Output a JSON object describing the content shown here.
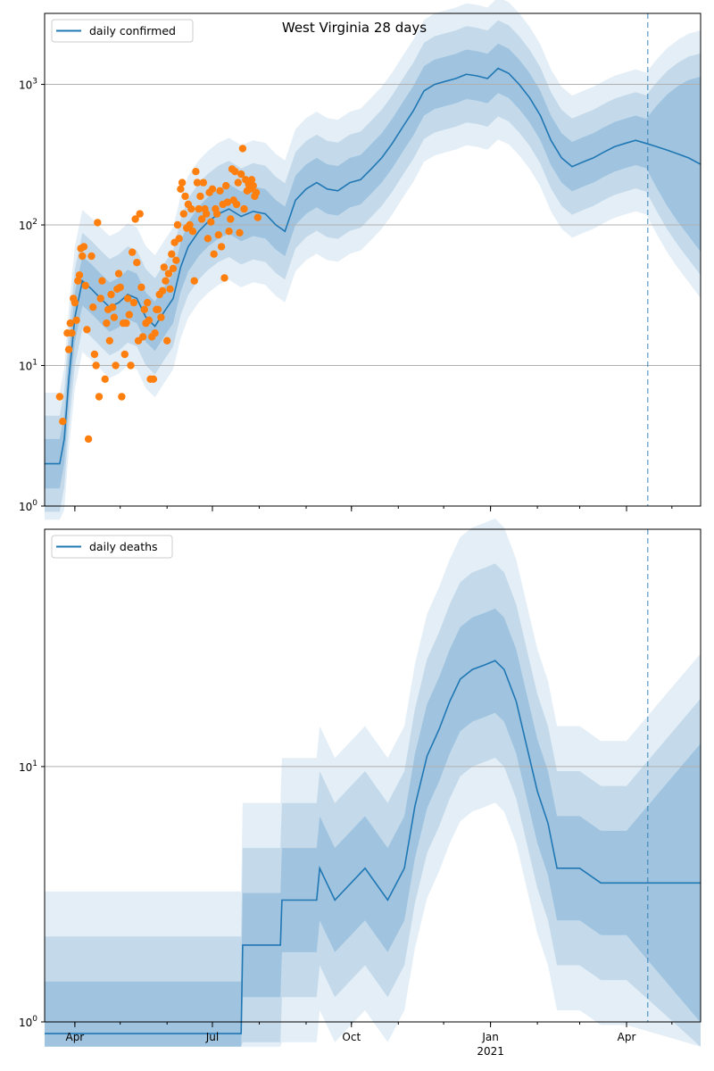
{
  "chart_data": [
    {
      "type": "line",
      "title": "West Virginia 28 days",
      "legend": [
        "daily confirmed"
      ],
      "legend_placement": "upper-left",
      "yscale": "log",
      "ylim": [
        1,
        3200
      ],
      "ytick_labels": [
        "10^0",
        "10^1",
        "10^2",
        "10^3"
      ],
      "ytick_values": [
        1,
        10,
        100,
        1000
      ],
      "xlim": [
        "2020-03-12",
        "2021-05-20"
      ],
      "xticks": [
        {
          "label": "Apr",
          "date": "2020-04-01"
        },
        {
          "label": "Jul",
          "date": "2020-07-01"
        },
        {
          "label": "Oct",
          "date": "2020-10-01"
        },
        {
          "label": "Jan",
          "date": "2021-01-01"
        },
        {
          "label": "Apr",
          "date": "2021-04-01"
        }
      ],
      "year_label": "2021",
      "grid": "horizontal",
      "forecast_start": "2021-04-15",
      "series": [
        {
          "name": "daily confirmed",
          "kind": "line",
          "points": [
            [
              "2020-03-12",
              2
            ],
            [
              "2020-03-17",
              2
            ],
            [
              "2020-03-19",
              2
            ],
            [
              "2020-03-22",
              2
            ],
            [
              "2020-03-25",
              3
            ],
            [
              "2020-03-28",
              8
            ],
            [
              "2020-04-01",
              22
            ],
            [
              "2020-04-06",
              40
            ],
            [
              "2020-04-12",
              35
            ],
            [
              "2020-04-18",
              30
            ],
            [
              "2020-04-24",
              26
            ],
            [
              "2020-04-30",
              28
            ],
            [
              "2020-05-06",
              32
            ],
            [
              "2020-05-12",
              30
            ],
            [
              "2020-05-18",
              22
            ],
            [
              "2020-05-24",
              19
            ],
            [
              "2020-05-30",
              24
            ],
            [
              "2020-06-05",
              30
            ],
            [
              "2020-06-10",
              50
            ],
            [
              "2020-06-15",
              70
            ],
            [
              "2020-06-22",
              90
            ],
            [
              "2020-06-28",
              105
            ],
            [
              "2020-07-05",
              120
            ],
            [
              "2020-07-12",
              130
            ],
            [
              "2020-07-20",
              115
            ],
            [
              "2020-07-28",
              125
            ],
            [
              "2020-08-05",
              120
            ],
            [
              "2020-08-12",
              100
            ],
            [
              "2020-08-18",
              90
            ],
            [
              "2020-08-25",
              150
            ],
            [
              "2020-09-01",
              180
            ],
            [
              "2020-09-08",
              200
            ],
            [
              "2020-09-15",
              180
            ],
            [
              "2020-09-22",
              175
            ],
            [
              "2020-09-30",
              200
            ],
            [
              "2020-10-07",
              210
            ],
            [
              "2020-10-14",
              250
            ],
            [
              "2020-10-21",
              300
            ],
            [
              "2020-10-28",
              380
            ],
            [
              "2020-11-04",
              500
            ],
            [
              "2020-11-11",
              650
            ],
            [
              "2020-11-18",
              900
            ],
            [
              "2020-11-25",
              1000
            ],
            [
              "2020-12-02",
              1050
            ],
            [
              "2020-12-09",
              1100
            ],
            [
              "2020-12-16",
              1180
            ],
            [
              "2020-12-23",
              1150
            ],
            [
              "2020-12-30",
              1100
            ],
            [
              "2021-01-06",
              1300
            ],
            [
              "2021-01-13",
              1200
            ],
            [
              "2021-01-20",
              1000
            ],
            [
              "2021-01-27",
              800
            ],
            [
              "2021-02-03",
              600
            ],
            [
              "2021-02-10",
              400
            ],
            [
              "2021-02-17",
              300
            ],
            [
              "2021-02-24",
              260
            ],
            [
              "2021-03-03",
              280
            ],
            [
              "2021-03-10",
              300
            ],
            [
              "2021-03-17",
              330
            ],
            [
              "2021-03-24",
              360
            ],
            [
              "2021-03-31",
              380
            ],
            [
              "2021-04-07",
              400
            ],
            [
              "2021-04-14",
              380
            ],
            [
              "2021-04-21",
              360
            ],
            [
              "2021-04-28",
              340
            ],
            [
              "2021-05-05",
              320
            ],
            [
              "2021-05-12",
              300
            ],
            [
              "2021-05-20",
              270
            ]
          ]
        },
        {
          "name": "",
          "kind": "scatter",
          "points": [
            [
              "2020-03-22",
              6
            ],
            [
              "2020-03-24",
              4
            ],
            [
              "2020-03-27",
              17
            ],
            [
              "2020-03-28",
              13
            ],
            [
              "2020-03-29",
              20
            ],
            [
              "2020-03-30",
              17
            ],
            [
              "2020-03-31",
              30
            ],
            [
              "2020-04-01",
              28
            ],
            [
              "2020-04-02",
              21
            ],
            [
              "2020-04-03",
              40
            ],
            [
              "2020-04-04",
              44
            ],
            [
              "2020-04-05",
              68
            ],
            [
              "2020-04-06",
              60
            ],
            [
              "2020-04-07",
              70
            ],
            [
              "2020-04-08",
              37
            ],
            [
              "2020-04-09",
              18
            ],
            [
              "2020-04-10",
              3
            ],
            [
              "2020-04-12",
              60
            ],
            [
              "2020-04-13",
              26
            ],
            [
              "2020-04-14",
              12
            ],
            [
              "2020-04-15",
              10
            ],
            [
              "2020-04-16",
              104
            ],
            [
              "2020-04-17",
              6
            ],
            [
              "2020-04-18",
              30
            ],
            [
              "2020-04-19",
              40
            ],
            [
              "2020-04-21",
              8
            ],
            [
              "2020-04-22",
              20
            ],
            [
              "2020-04-23",
              25
            ],
            [
              "2020-04-24",
              15
            ],
            [
              "2020-04-25",
              32
            ],
            [
              "2020-04-26",
              26
            ],
            [
              "2020-04-27",
              22
            ],
            [
              "2020-04-28",
              10
            ],
            [
              "2020-04-29",
              35
            ],
            [
              "2020-04-30",
              45
            ],
            [
              "2020-05-01",
              36
            ],
            [
              "2020-05-02",
              6
            ],
            [
              "2020-05-03",
              20
            ],
            [
              "2020-05-04",
              12
            ],
            [
              "2020-05-05",
              20
            ],
            [
              "2020-05-06",
              30
            ],
            [
              "2020-05-07",
              23
            ],
            [
              "2020-05-08",
              10
            ],
            [
              "2020-05-09",
              64
            ],
            [
              "2020-05-10",
              28
            ],
            [
              "2020-05-11",
              110
            ],
            [
              "2020-05-12",
              54
            ],
            [
              "2020-05-13",
              15
            ],
            [
              "2020-05-14",
              120
            ],
            [
              "2020-05-15",
              36
            ],
            [
              "2020-05-16",
              16
            ],
            [
              "2020-05-17",
              25
            ],
            [
              "2020-05-18",
              20
            ],
            [
              "2020-05-19",
              28
            ],
            [
              "2020-05-20",
              21
            ],
            [
              "2020-05-21",
              8
            ],
            [
              "2020-05-22",
              16
            ],
            [
              "2020-05-23",
              8
            ],
            [
              "2020-05-24",
              17
            ],
            [
              "2020-05-25",
              25
            ],
            [
              "2020-05-26",
              25
            ],
            [
              "2020-05-27",
              32
            ],
            [
              "2020-05-28",
              22
            ],
            [
              "2020-05-29",
              34
            ],
            [
              "2020-05-30",
              50
            ],
            [
              "2020-05-31",
              40
            ],
            [
              "2020-06-01",
              15
            ],
            [
              "2020-06-02",
              45
            ],
            [
              "2020-06-03",
              35
            ],
            [
              "2020-06-04",
              62
            ],
            [
              "2020-06-05",
              49
            ],
            [
              "2020-06-06",
              75
            ],
            [
              "2020-06-07",
              56
            ],
            [
              "2020-06-08",
              100
            ],
            [
              "2020-06-09",
              80
            ],
            [
              "2020-06-10",
              180
            ],
            [
              "2020-06-11",
              200
            ],
            [
              "2020-06-12",
              120
            ],
            [
              "2020-06-13",
              160
            ],
            [
              "2020-06-14",
              95
            ],
            [
              "2020-06-15",
              140
            ],
            [
              "2020-06-16",
              100
            ],
            [
              "2020-06-17",
              130
            ],
            [
              "2020-06-18",
              90
            ],
            [
              "2020-06-19",
              40
            ],
            [
              "2020-06-20",
              240
            ],
            [
              "2020-06-21",
              200
            ],
            [
              "2020-06-22",
              130
            ],
            [
              "2020-06-23",
              160
            ],
            [
              "2020-06-24",
              110
            ],
            [
              "2020-06-25",
              200
            ],
            [
              "2020-06-26",
              130
            ],
            [
              "2020-06-27",
              120
            ],
            [
              "2020-06-28",
              80
            ],
            [
              "2020-06-29",
              170
            ],
            [
              "2020-06-30",
              105
            ],
            [
              "2020-07-01",
              180
            ],
            [
              "2020-07-02",
              62
            ],
            [
              "2020-07-03",
              130
            ],
            [
              "2020-07-04",
              120
            ],
            [
              "2020-07-05",
              85
            ],
            [
              "2020-07-06",
              175
            ],
            [
              "2020-07-07",
              70
            ],
            [
              "2020-07-08",
              140
            ],
            [
              "2020-07-09",
              42
            ],
            [
              "2020-07-10",
              190
            ],
            [
              "2020-07-11",
              145
            ],
            [
              "2020-07-12",
              90
            ],
            [
              "2020-07-13",
              110
            ],
            [
              "2020-07-14",
              250
            ],
            [
              "2020-07-15",
              150
            ],
            [
              "2020-07-16",
              240
            ],
            [
              "2020-07-17",
              140
            ],
            [
              "2020-07-18",
              200
            ],
            [
              "2020-07-19",
              88
            ],
            [
              "2020-07-20",
              230
            ],
            [
              "2020-07-21",
              350
            ],
            [
              "2020-07-22",
              130
            ],
            [
              "2020-07-23",
              210
            ],
            [
              "2020-07-24",
              175
            ],
            [
              "2020-07-25",
              195
            ],
            [
              "2020-07-26",
              180
            ],
            [
              "2020-07-27",
              210
            ],
            [
              "2020-07-28",
              190
            ],
            [
              "2020-07-29",
              160
            ],
            [
              "2020-07-30",
              170
            ],
            [
              "2020-07-31",
              113
            ]
          ]
        }
      ]
    },
    {
      "type": "line",
      "title": "",
      "legend": [
        "daily deaths"
      ],
      "legend_placement": "upper-left",
      "yscale": "log",
      "ylim": [
        1,
        85
      ],
      "ytick_labels": [
        "10^0",
        "10^1"
      ],
      "ytick_values": [
        1,
        10
      ],
      "xlim": [
        "2020-03-12",
        "2021-05-20"
      ],
      "xticks": [
        {
          "label": "Apr",
          "date": "2020-04-01"
        },
        {
          "label": "Jul",
          "date": "2020-07-01"
        },
        {
          "label": "Oct",
          "date": "2020-10-01"
        },
        {
          "label": "Jan",
          "date": "2021-01-01"
        },
        {
          "label": "Apr",
          "date": "2021-04-01"
        }
      ],
      "year_label": "2021",
      "grid": "horizontal",
      "forecast_start": "2021-04-15",
      "series": [
        {
          "name": "daily deaths",
          "kind": "line",
          "points": [
            [
              "2020-03-12",
              0.9
            ],
            [
              "2020-07-20",
              0.9
            ],
            [
              "2020-07-21",
              2
            ],
            [
              "2020-08-15",
              2
            ],
            [
              "2020-08-16",
              3
            ],
            [
              "2020-09-08",
              3
            ],
            [
              "2020-09-10",
              4
            ],
            [
              "2020-09-20",
              3
            ],
            [
              "2020-10-10",
              4
            ],
            [
              "2020-10-25",
              3
            ],
            [
              "2020-11-05",
              4
            ],
            [
              "2020-11-12",
              7
            ],
            [
              "2020-11-20",
              11
            ],
            [
              "2020-11-28",
              14
            ],
            [
              "2020-12-05",
              18
            ],
            [
              "2020-12-12",
              22
            ],
            [
              "2020-12-20",
              24
            ],
            [
              "2020-12-28",
              25
            ],
            [
              "2021-01-04",
              26
            ],
            [
              "2021-01-10",
              24
            ],
            [
              "2021-01-18",
              18
            ],
            [
              "2021-01-25",
              12
            ],
            [
              "2021-02-01",
              8
            ],
            [
              "2021-02-08",
              6
            ],
            [
              "2021-02-14",
              4
            ],
            [
              "2021-02-20",
              4
            ],
            [
              "2021-03-01",
              4
            ],
            [
              "2021-03-15",
              3.5
            ],
            [
              "2021-04-01",
              3.5
            ],
            [
              "2021-05-20",
              3.5
            ]
          ]
        }
      ]
    }
  ]
}
